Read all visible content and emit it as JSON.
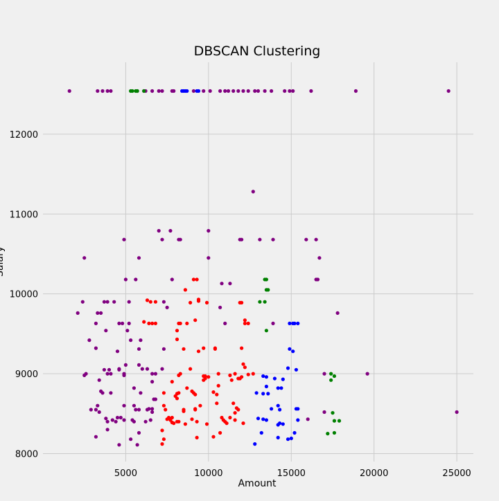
{
  "chart_data": {
    "type": "scatter",
    "title": "DBSCAN Clustering",
    "xlabel": "Amount",
    "ylabel": "Salary",
    "xlim": [
      0,
      26000
    ],
    "ylim": [
      7900,
      12900
    ],
    "xticks": [
      5000,
      10000,
      15000,
      20000,
      25000
    ],
    "yticks": [
      8000,
      9000,
      10000,
      11000,
      12000
    ],
    "grid": true,
    "legend": "none",
    "colors": {
      "background": "#f0f0f0",
      "grid": "#cbcbcb",
      "purple": "#800080",
      "red": "#ff0000",
      "blue": "#0000ff",
      "green": "#008000"
    },
    "series": [
      {
        "color": "purple",
        "points": [
          [
            1600,
            12540
          ],
          [
            3300,
            12540
          ],
          [
            3600,
            12540
          ],
          [
            3900,
            12540
          ],
          [
            4100,
            12540
          ],
          [
            5700,
            12540
          ],
          [
            6100,
            12540
          ],
          [
            6200,
            12540
          ],
          [
            6600,
            12540
          ],
          [
            7000,
            12540
          ],
          [
            7200,
            12540
          ],
          [
            7800,
            12540
          ],
          [
            7900,
            12540
          ],
          [
            9100,
            12540
          ],
          [
            9700,
            12540
          ],
          [
            10100,
            12540
          ],
          [
            10700,
            12540
          ],
          [
            11000,
            12540
          ],
          [
            11200,
            12540
          ],
          [
            11500,
            12540
          ],
          [
            11800,
            12540
          ],
          [
            12100,
            12540
          ],
          [
            12400,
            12540
          ],
          [
            12800,
            12540
          ],
          [
            13000,
            12540
          ],
          [
            13400,
            12540
          ],
          [
            13800,
            12540
          ],
          [
            14600,
            12540
          ],
          [
            14900,
            12540
          ],
          [
            15100,
            12540
          ],
          [
            16200,
            12540
          ],
          [
            18900,
            12540
          ],
          [
            24500,
            12540
          ],
          [
            12700,
            11280
          ],
          [
            4900,
            10680
          ],
          [
            7000,
            10790
          ],
          [
            7200,
            10680
          ],
          [
            7700,
            10790
          ],
          [
            8200,
            10680
          ],
          [
            8300,
            10680
          ],
          [
            10000,
            10790
          ],
          [
            11900,
            10680
          ],
          [
            12000,
            10680
          ],
          [
            13100,
            10680
          ],
          [
            13900,
            10680
          ],
          [
            15900,
            10680
          ],
          [
            16500,
            10680
          ],
          [
            16700,
            10450
          ],
          [
            2500,
            10450
          ],
          [
            5800,
            10450
          ],
          [
            10000,
            10450
          ],
          [
            5000,
            10180
          ],
          [
            5600,
            10180
          ],
          [
            7800,
            10180
          ],
          [
            10800,
            10130
          ],
          [
            11300,
            10130
          ],
          [
            16500,
            10180
          ],
          [
            16600,
            10180
          ],
          [
            2400,
            9900
          ],
          [
            3300,
            9760
          ],
          [
            3500,
            9760
          ],
          [
            3700,
            9900
          ],
          [
            3900,
            9900
          ],
          [
            4300,
            9900
          ],
          [
            5200,
            9900
          ],
          [
            2100,
            9760
          ],
          [
            3200,
            9630
          ],
          [
            3800,
            9540
          ],
          [
            4600,
            9630
          ],
          [
            4800,
            9630
          ],
          [
            5100,
            9540
          ],
          [
            5200,
            9630
          ],
          [
            7300,
            9900
          ],
          [
            7500,
            9830
          ],
          [
            10700,
            9830
          ],
          [
            11000,
            9630
          ],
          [
            13900,
            9630
          ],
          [
            17800,
            9760
          ],
          [
            2800,
            9420
          ],
          [
            3200,
            9320
          ],
          [
            4500,
            9280
          ],
          [
            5300,
            9420
          ],
          [
            5800,
            9310
          ],
          [
            5900,
            9420
          ],
          [
            7300,
            9310
          ],
          [
            2500,
            8980
          ],
          [
            2600,
            9000
          ],
          [
            3700,
            9050
          ],
          [
            3900,
            9000
          ],
          [
            4000,
            9050
          ],
          [
            4100,
            9000
          ],
          [
            4600,
            9050
          ],
          [
            4600,
            9060
          ],
          [
            4900,
            8980
          ],
          [
            4900,
            9000
          ],
          [
            5000,
            9110
          ],
          [
            5800,
            9110
          ],
          [
            6000,
            9060
          ],
          [
            6300,
            9060
          ],
          [
            6600,
            9000
          ],
          [
            6600,
            8900
          ],
          [
            6800,
            9000
          ],
          [
            7200,
            9060
          ],
          [
            3400,
            8920
          ],
          [
            3500,
            8780
          ],
          [
            3600,
            8760
          ],
          [
            4100,
            8760
          ],
          [
            4900,
            8600
          ],
          [
            5500,
            8820
          ],
          [
            5900,
            8760
          ],
          [
            6700,
            8680
          ],
          [
            6800,
            8680
          ],
          [
            17000,
            9000
          ],
          [
            19600,
            9000
          ],
          [
            2900,
            8550
          ],
          [
            3200,
            8550
          ],
          [
            3300,
            8600
          ],
          [
            3400,
            8520
          ],
          [
            3800,
            8440
          ],
          [
            3900,
            8400
          ],
          [
            4200,
            8420
          ],
          [
            4400,
            8400
          ],
          [
            4500,
            8450
          ],
          [
            4700,
            8450
          ],
          [
            4900,
            8420
          ],
          [
            5400,
            8420
          ],
          [
            5500,
            8400
          ],
          [
            5500,
            8600
          ],
          [
            5600,
            8550
          ],
          [
            5800,
            8550
          ],
          [
            6200,
            8400
          ],
          [
            6300,
            8550
          ],
          [
            6400,
            8560
          ],
          [
            6600,
            8560
          ],
          [
            6500,
            8420
          ],
          [
            6600,
            8520
          ],
          [
            3200,
            8210
          ],
          [
            3900,
            8300
          ],
          [
            4600,
            8110
          ],
          [
            5300,
            8180
          ],
          [
            5700,
            8110
          ],
          [
            5800,
            8260
          ],
          [
            17000,
            8520
          ],
          [
            16000,
            8430
          ],
          [
            25000,
            8520
          ]
        ]
      },
      {
        "color": "red",
        "points": [
          [
            6300,
            9920
          ],
          [
            6500,
            9900
          ],
          [
            6800,
            9900
          ],
          [
            8900,
            9890
          ],
          [
            9100,
            10180
          ],
          [
            9300,
            10180
          ],
          [
            9400,
            9910
          ],
          [
            9400,
            9930
          ],
          [
            9900,
            9890
          ],
          [
            11900,
            9890
          ],
          [
            12000,
            9890
          ],
          [
            8600,
            10050
          ],
          [
            6400,
            9630
          ],
          [
            6600,
            9630
          ],
          [
            6800,
            9630
          ],
          [
            8200,
            9630
          ],
          [
            8300,
            9630
          ],
          [
            8700,
            9630
          ],
          [
            9200,
            9670
          ],
          [
            12200,
            9670
          ],
          [
            12200,
            9630
          ],
          [
            12400,
            9630
          ],
          [
            6100,
            9650
          ],
          [
            8100,
            9540
          ],
          [
            8100,
            9430
          ],
          [
            8500,
            9310
          ],
          [
            9400,
            9280
          ],
          [
            9700,
            9320
          ],
          [
            10400,
            9310
          ],
          [
            10400,
            9320
          ],
          [
            12000,
            9320
          ],
          [
            7800,
            8900
          ],
          [
            8200,
            8980
          ],
          [
            8300,
            9000
          ],
          [
            8700,
            8820
          ],
          [
            8900,
            9060
          ],
          [
            9000,
            8780
          ],
          [
            9100,
            8760
          ],
          [
            9200,
            8740
          ],
          [
            9200,
            8550
          ],
          [
            9700,
            8970
          ],
          [
            9700,
            8920
          ],
          [
            9800,
            8970
          ],
          [
            9800,
            8940
          ],
          [
            10000,
            8960
          ],
          [
            10300,
            8770
          ],
          [
            10500,
            8740
          ],
          [
            10600,
            9000
          ],
          [
            10600,
            8850
          ],
          [
            11300,
            8980
          ],
          [
            11400,
            8920
          ],
          [
            11600,
            9000
          ],
          [
            11800,
            8940
          ],
          [
            11900,
            8940
          ],
          [
            12000,
            8960
          ],
          [
            12100,
            9120
          ],
          [
            12200,
            9080
          ],
          [
            12400,
            8990
          ],
          [
            12700,
            9000
          ],
          [
            8000,
            8720
          ],
          [
            8100,
            8750
          ],
          [
            8200,
            8760
          ],
          [
            8100,
            8690
          ],
          [
            7200,
            8290
          ],
          [
            7200,
            8120
          ],
          [
            7300,
            8180
          ],
          [
            7300,
            8600
          ],
          [
            7400,
            8550
          ],
          [
            7500,
            8430
          ],
          [
            7600,
            8450
          ],
          [
            7700,
            8420
          ],
          [
            7800,
            8450
          ],
          [
            7800,
            8390
          ],
          [
            7900,
            8380
          ],
          [
            8100,
            8400
          ],
          [
            8200,
            8400
          ],
          [
            8500,
            8550
          ],
          [
            8500,
            8530
          ],
          [
            8600,
            8370
          ],
          [
            9000,
            8430
          ],
          [
            9200,
            8560
          ],
          [
            9300,
            8400
          ],
          [
            9300,
            8200
          ],
          [
            9500,
            8600
          ],
          [
            9900,
            8370
          ],
          [
            10300,
            8210
          ],
          [
            10500,
            8630
          ],
          [
            10700,
            8260
          ],
          [
            10800,
            8450
          ],
          [
            10900,
            8420
          ],
          [
            11000,
            8400
          ],
          [
            11100,
            8380
          ],
          [
            11300,
            8450
          ],
          [
            11500,
            8630
          ],
          [
            11600,
            8420
          ],
          [
            11600,
            8510
          ],
          [
            11700,
            8570
          ],
          [
            11800,
            8550
          ],
          [
            12100,
            8380
          ],
          [
            7300,
            8760
          ]
        ]
      },
      {
        "color": "blue",
        "points": [
          [
            8400,
            12540
          ],
          [
            8500,
            12540
          ],
          [
            8600,
            12540
          ],
          [
            8700,
            12540
          ],
          [
            9300,
            12540
          ],
          [
            9400,
            12540
          ],
          [
            14900,
            9630
          ],
          [
            15100,
            9630
          ],
          [
            15200,
            9630
          ],
          [
            15400,
            9630
          ],
          [
            14900,
            9310
          ],
          [
            15100,
            9280
          ],
          [
            13300,
            8970
          ],
          [
            13500,
            8960
          ],
          [
            13300,
            8750
          ],
          [
            13500,
            8840
          ],
          [
            13600,
            8750
          ],
          [
            14000,
            8940
          ],
          [
            14200,
            8820
          ],
          [
            14400,
            8820
          ],
          [
            14500,
            8930
          ],
          [
            14800,
            9070
          ],
          [
            15300,
            9050
          ],
          [
            13300,
            8430
          ],
          [
            13500,
            8420
          ],
          [
            13800,
            8560
          ],
          [
            14200,
            8600
          ],
          [
            14300,
            8550
          ],
          [
            13000,
            8440
          ],
          [
            13200,
            8260
          ],
          [
            12800,
            8120
          ],
          [
            12900,
            8760
          ],
          [
            14200,
            8360
          ],
          [
            14300,
            8380
          ],
          [
            14500,
            8370
          ],
          [
            14800,
            8180
          ],
          [
            15000,
            8190
          ],
          [
            15300,
            8560
          ],
          [
            15400,
            8560
          ],
          [
            15400,
            8420
          ],
          [
            15200,
            8260
          ],
          [
            14200,
            8200
          ]
        ]
      },
      {
        "color": "green",
        "points": [
          [
            5300,
            12540
          ],
          [
            5400,
            12540
          ],
          [
            5600,
            12540
          ],
          [
            5700,
            12540
          ],
          [
            6100,
            12540
          ],
          [
            13400,
            10180
          ],
          [
            13500,
            10180
          ],
          [
            13500,
            10050
          ],
          [
            13600,
            10050
          ],
          [
            13100,
            9900
          ],
          [
            13400,
            9900
          ],
          [
            13500,
            9540
          ],
          [
            17400,
            9000
          ],
          [
            17400,
            8920
          ],
          [
            17600,
            8970
          ],
          [
            17500,
            8510
          ],
          [
            17600,
            8410
          ],
          [
            17900,
            8410
          ],
          [
            17200,
            8250
          ],
          [
            17600,
            8260
          ]
        ]
      }
    ]
  }
}
